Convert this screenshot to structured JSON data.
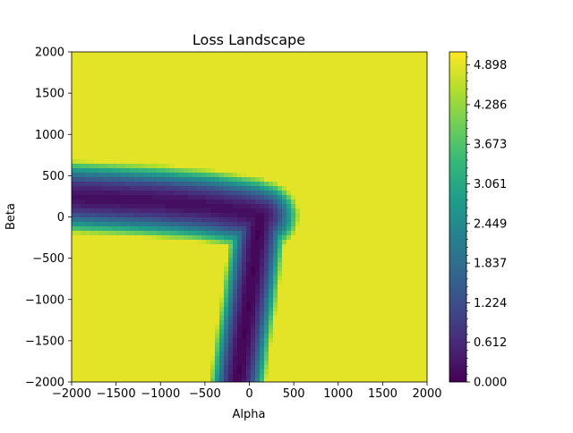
{
  "chart_data": {
    "type": "heatmap",
    "subtype": "filled-contour",
    "title": "Loss Landscape",
    "xlabel": "Alpha",
    "ylabel": "Beta",
    "xlim": [
      -2000,
      2000
    ],
    "ylim": [
      -2000,
      2000
    ],
    "x_ticks": [
      -2000,
      -1500,
      -1000,
      -500,
      0,
      500,
      1000,
      1500,
      2000
    ],
    "x_tick_labels": [
      "−2000",
      "−1500",
      "−1000",
      "−500",
      "0",
      "500",
      "1000",
      "1500",
      "2000"
    ],
    "y_ticks": [
      -2000,
      -1500,
      -1000,
      -500,
      0,
      500,
      1000,
      1500,
      2000
    ],
    "y_tick_labels": [
      "−2000",
      "−1500",
      "−1000",
      "−500",
      "0",
      "500",
      "1000",
      "1500",
      "2000"
    ],
    "colormap": "viridis",
    "colorbar": {
      "ticks": [
        0.0,
        0.612,
        1.224,
        1.837,
        2.449,
        3.061,
        3.673,
        4.286,
        4.898
      ],
      "tick_labels": [
        "0.000",
        "0.612",
        "1.224",
        "1.837",
        "2.449",
        "3.061",
        "3.673",
        "4.286",
        "4.898"
      ],
      "range": [
        0.0,
        5.1
      ],
      "levels": 50
    },
    "valley": {
      "horizontal_arm": {
        "center": [
          [
            -2000,
            240
          ],
          [
            -1500,
            215
          ],
          [
            -1000,
            185
          ],
          [
            -500,
            135
          ],
          [
            0,
            50
          ],
          [
            120,
            10
          ]
        ],
        "min_loss": 0.25
      },
      "vertical_arm": {
        "center": [
          [
            120,
            10
          ],
          [
            60,
            -500
          ],
          [
            0,
            -1000
          ],
          [
            -70,
            -1500
          ],
          [
            -130,
            -2000
          ]
        ],
        "min_loss": 0.1
      },
      "clip_level": 4.9
    },
    "grid": false
  },
  "colors": {
    "viridis": [
      "#440154",
      "#482878",
      "#3e4989",
      "#31688e",
      "#26828e",
      "#1f9e89",
      "#35b779",
      "#6ece58",
      "#b5de2b",
      "#fde725"
    ],
    "axis": "#000000",
    "background": "#ffffff"
  }
}
